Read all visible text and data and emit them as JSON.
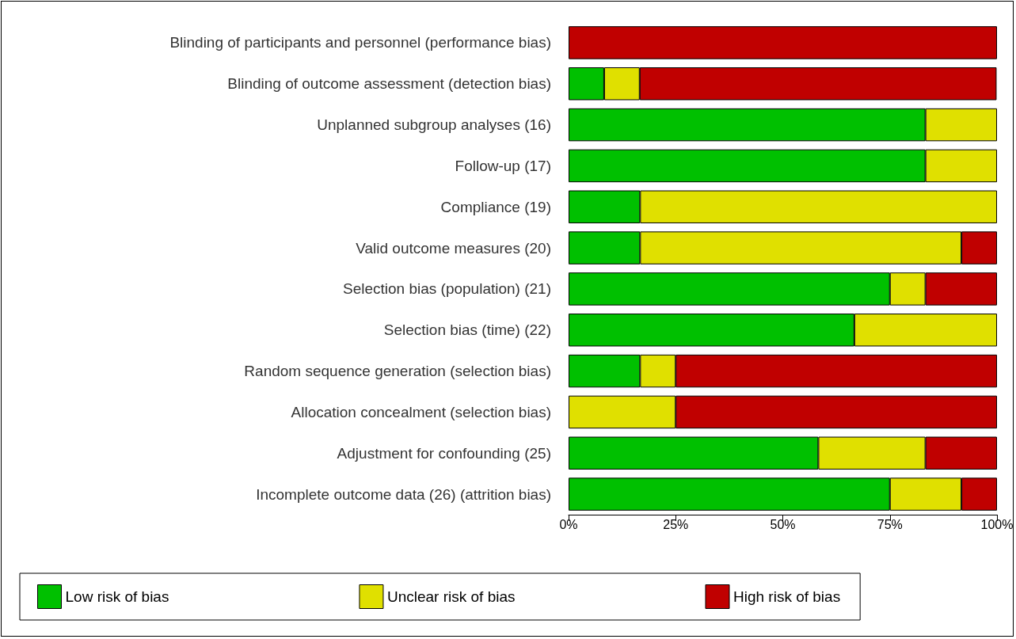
{
  "chart_data": {
    "type": "bar",
    "orientation": "horizontal",
    "stacked": true,
    "categories": [
      "Blinding of participants and personnel (performance bias)",
      "Blinding of outcome assessment (detection bias)",
      "Unplanned subgroup analyses (16)",
      "Follow-up (17)",
      "Compliance (19)",
      "Valid outcome measures (20)",
      "Selection bias (population) (21)",
      "Selection bias (time) (22)",
      "Random sequence generation (selection bias)",
      "Allocation concealment (selection bias)",
      "Adjustment for confounding (25)",
      "Incomplete outcome data (26) (attrition bias)"
    ],
    "series": [
      {
        "name": "Low risk of bias",
        "color": "#00c000",
        "values": [
          0,
          8.3,
          83.3,
          83.3,
          16.7,
          16.7,
          75,
          66.7,
          16.7,
          0,
          58.3,
          75
        ]
      },
      {
        "name": "Unclear risk of bias",
        "color": "#e0e000",
        "values": [
          0,
          8.3,
          16.7,
          16.7,
          83.3,
          75,
          8.3,
          33.3,
          8.3,
          25,
          25,
          16.7
        ]
      },
      {
        "name": "High risk of bias",
        "color": "#c00000",
        "values": [
          100,
          83.3,
          0,
          0,
          0,
          8.3,
          16.7,
          0,
          75,
          75,
          16.7,
          8.3
        ]
      }
    ],
    "xlim": [
      0,
      100
    ],
    "xticks": [
      {
        "value": 0,
        "label": "0%"
      },
      {
        "value": 25,
        "label": "25%"
      },
      {
        "value": 50,
        "label": "50%"
      },
      {
        "value": 75,
        "label": "75%"
      },
      {
        "value": 100,
        "label": "100%"
      }
    ],
    "grid": false,
    "legend": "bottom"
  }
}
